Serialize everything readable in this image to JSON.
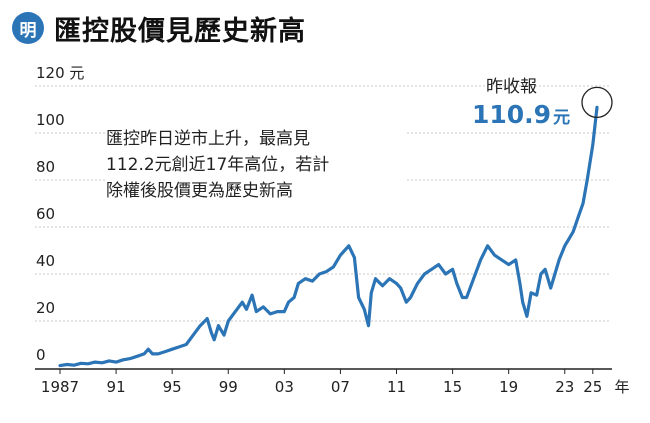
{
  "header": {
    "logo_text": "明",
    "title": "匯控股價見歷史新高"
  },
  "annotation": {
    "lines": [
      "匯控昨日逆市上升，最高見",
      "112.2元創近17年高位，若計",
      "除權後股價更為歷史新高"
    ]
  },
  "last_close": {
    "label": "昨收報",
    "value": "110.9",
    "unit": "元"
  },
  "colors": {
    "line": "#2b74b6",
    "grid": "#c8c8c8",
    "axis": "#222222"
  },
  "chart_data": {
    "type": "line",
    "title": "匯控股價見歷史新高",
    "xlabel": "",
    "ylabel": "",
    "y_unit": "元",
    "x_unit": "年",
    "xlim": [
      1987,
      2025.3
    ],
    "ylim": [
      0,
      120
    ],
    "grid": "horizontal dotted",
    "x_ticks": [
      1987,
      1991,
      1995,
      1999,
      2003,
      2007,
      2011,
      2015,
      2019,
      2023,
      2025
    ],
    "x_tick_labels": [
      "1987",
      "91",
      "95",
      "99",
      "03",
      "07",
      "11",
      "15",
      "19",
      "23",
      "25"
    ],
    "y_ticks": [
      0,
      20,
      40,
      60,
      80,
      100,
      120
    ],
    "y_tick_labels": [
      "0",
      "20",
      "40",
      "60",
      "80",
      "100",
      "120"
    ],
    "last_point_marker": "circle",
    "series": [
      {
        "x": [
          1987.0,
          1987.5,
          1988.0,
          1988.5,
          1989.0,
          1989.5,
          1990.0,
          1990.5,
          1991.0,
          1991.5,
          1992.0,
          1992.5,
          1993.0,
          1993.3,
          1993.6,
          1994.0,
          1994.5,
          1995.0,
          1995.5,
          1996.0,
          1996.5,
          1997.0,
          1997.5,
          1997.8,
          1998.0,
          1998.3,
          1998.7,
          1999.0,
          1999.5,
          2000.0,
          2000.3,
          2000.7,
          2001.0,
          2001.5,
          2002.0,
          2002.5,
          2003.0,
          2003.3,
          2003.7,
          2004.0,
          2004.5,
          2005.0,
          2005.5,
          2006.0,
          2006.5,
          2007.0,
          2007.3,
          2007.6,
          2008.0,
          2008.3,
          2008.7,
          2009.0,
          2009.2,
          2009.5,
          2010.0,
          2010.5,
          2011.0,
          2011.3,
          2011.7,
          2012.0,
          2012.5,
          2013.0,
          2013.5,
          2014.0,
          2014.5,
          2015.0,
          2015.3,
          2015.7,
          2016.0,
          2016.5,
          2017.0,
          2017.5,
          2018.0,
          2018.5,
          2019.0,
          2019.5,
          2019.8,
          2020.0,
          2020.3,
          2020.6,
          2021.0,
          2021.3,
          2021.6,
          2022.0,
          2022.3,
          2022.6,
          2023.0,
          2023.3,
          2023.6,
          2024.0,
          2024.3,
          2024.6,
          2025.0,
          2025.3
        ],
        "values": [
          1,
          1.5,
          1.2,
          2,
          1.8,
          2.5,
          2.2,
          3,
          2.5,
          3.5,
          4,
          5,
          6,
          8,
          6,
          6,
          7,
          8,
          9,
          10,
          14,
          18,
          21,
          15,
          12,
          18,
          14,
          20,
          24,
          28,
          25,
          31,
          24,
          26,
          23,
          24,
          24,
          28,
          30,
          36,
          38,
          37,
          40,
          41,
          43,
          48,
          50,
          52,
          47,
          30,
          25,
          18,
          32,
          38,
          35,
          38,
          36,
          34,
          28,
          30,
          36,
          40,
          42,
          44,
          40,
          42,
          36,
          30,
          30,
          38,
          46,
          52,
          48,
          46,
          44,
          46,
          36,
          28,
          22,
          32,
          31,
          40,
          42,
          34,
          40,
          46,
          52,
          55,
          58,
          65,
          70,
          80,
          95,
          110.9
        ]
      }
    ]
  }
}
